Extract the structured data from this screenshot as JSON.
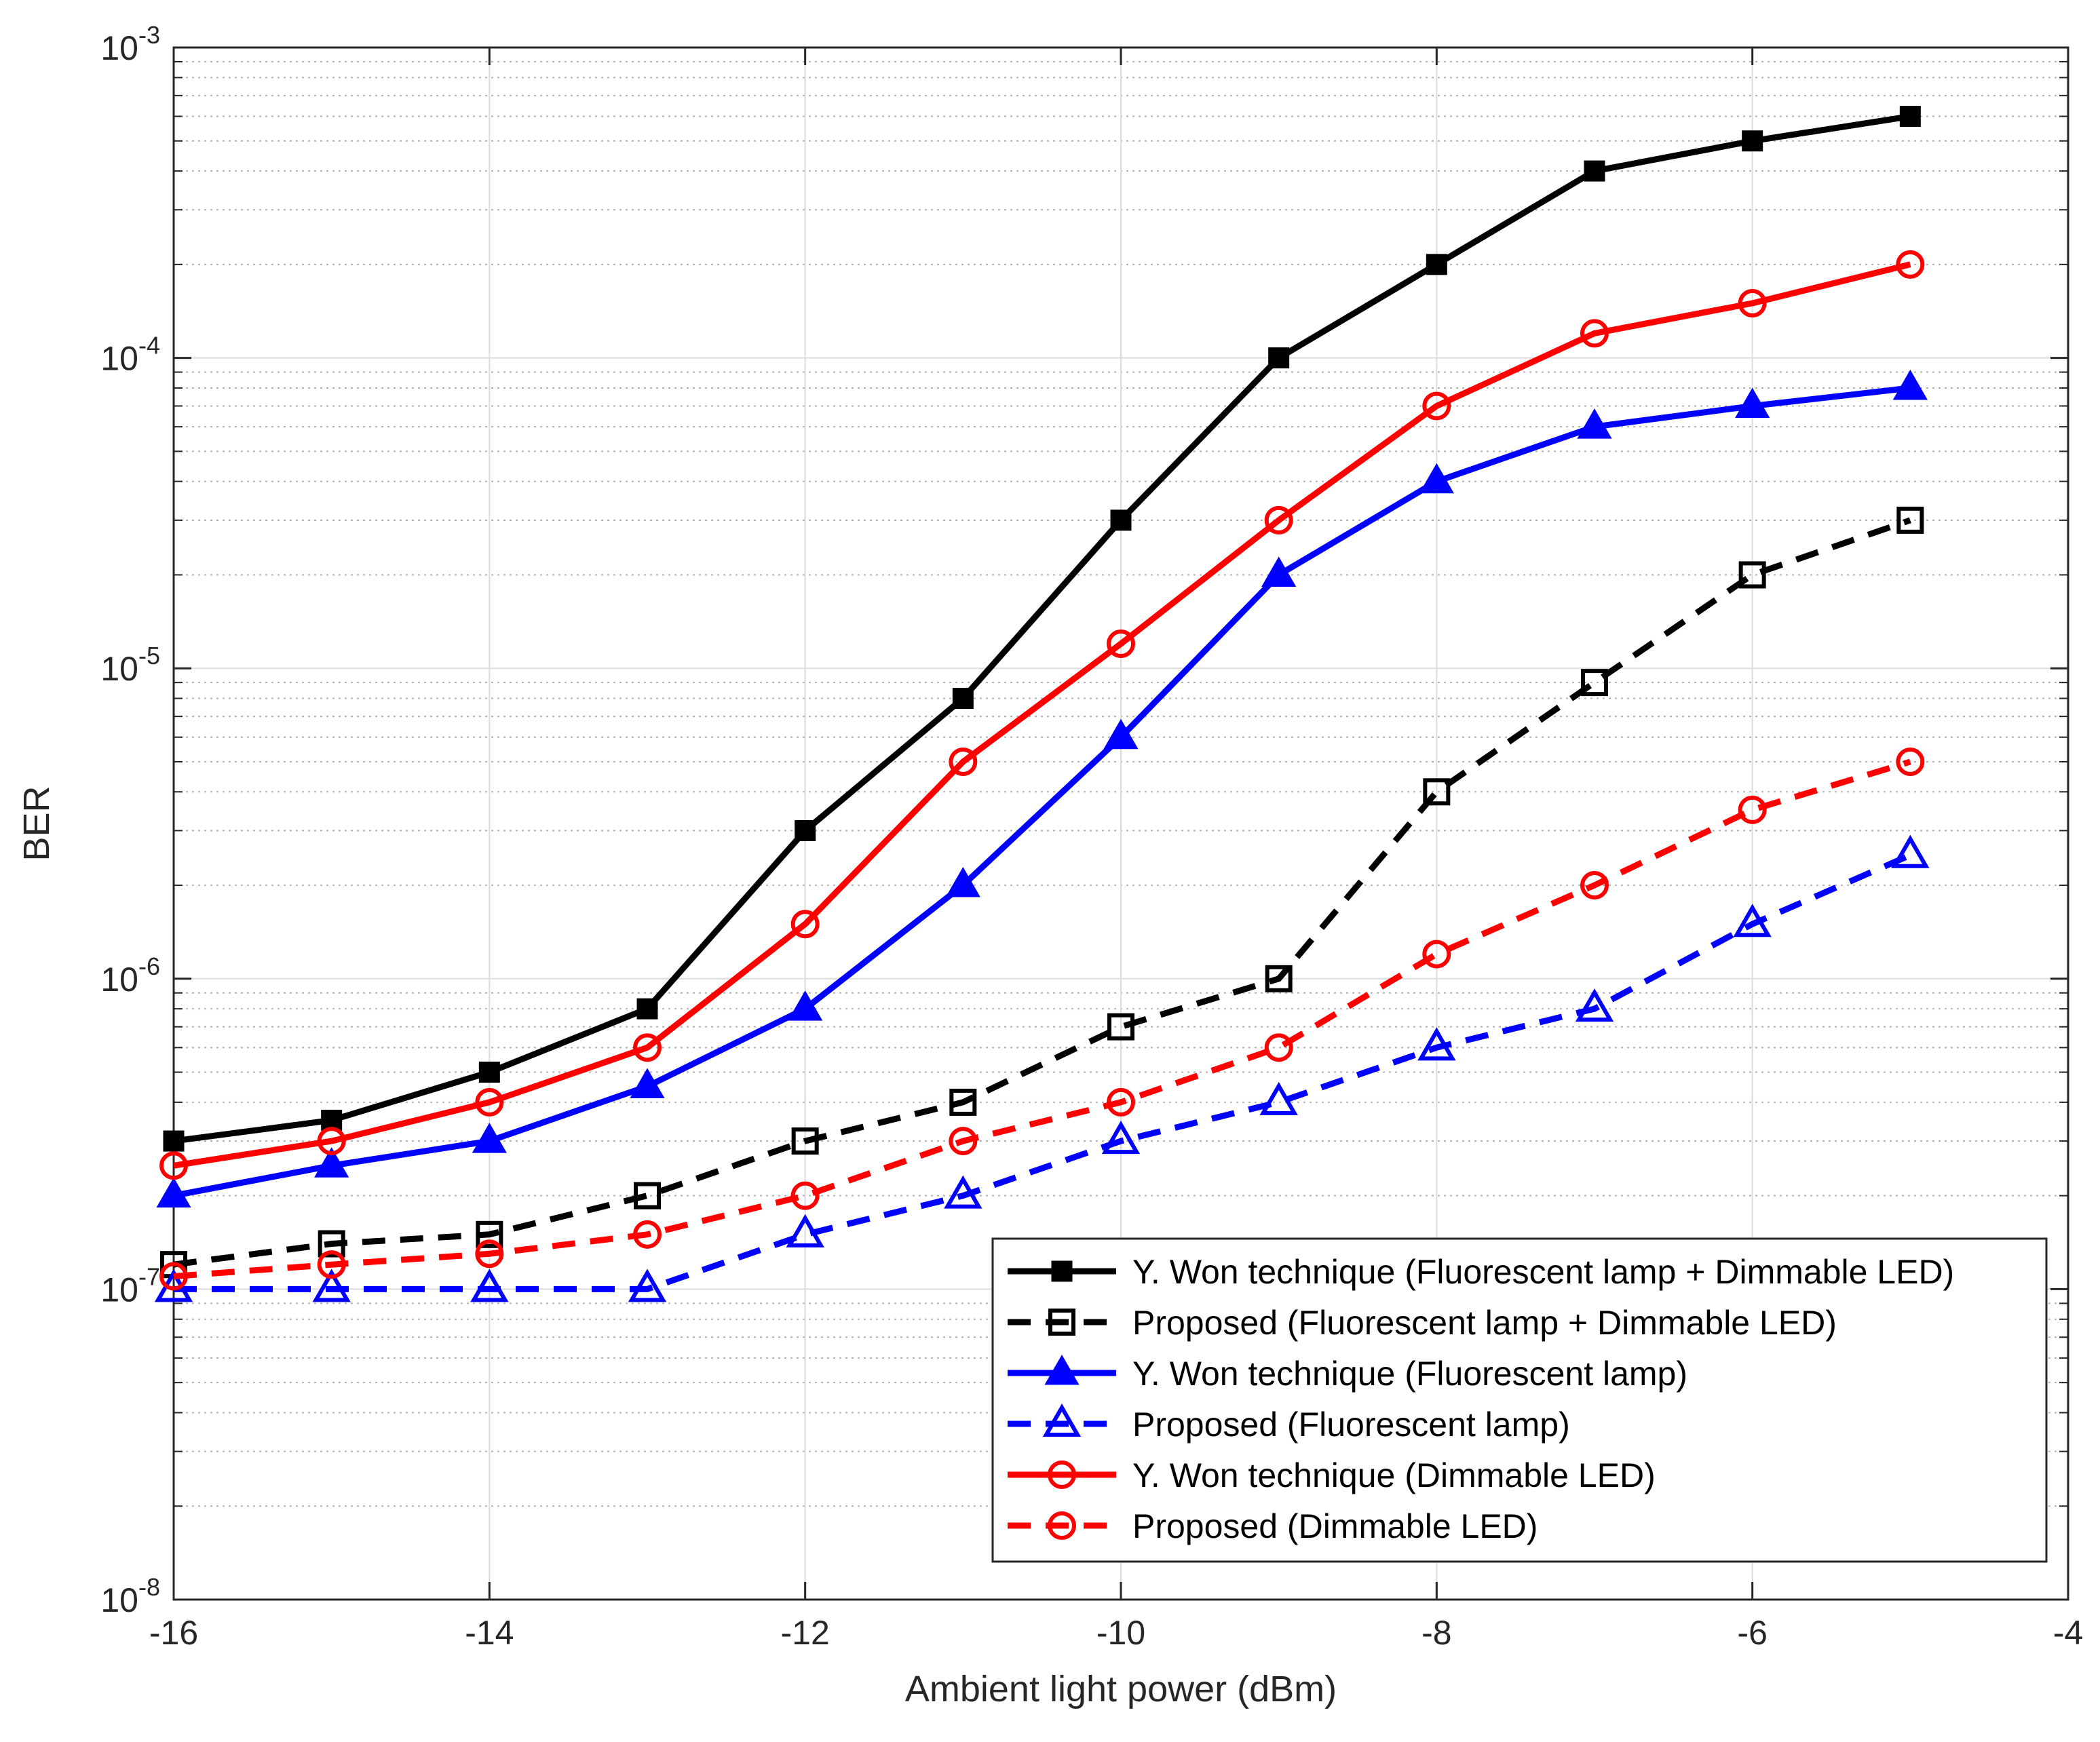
{
  "chart_data": {
    "type": "line",
    "title": "",
    "xlabel": "Ambient light power (dBm)",
    "ylabel": "BER",
    "yscale": "log",
    "xlim": [
      -16,
      -4
    ],
    "ylim": [
      1e-08,
      0.001
    ],
    "grid": true,
    "legend_location": "bottom-right",
    "x": [
      -16,
      -15,
      -14,
      -13,
      -12,
      -11,
      -10,
      -9,
      -8,
      -7,
      -6,
      -5
    ],
    "x_ticks": [
      {
        "value": -16,
        "label": "-16"
      },
      {
        "value": -14,
        "label": "-14"
      },
      {
        "value": -12,
        "label": "-12"
      },
      {
        "value": -10,
        "label": "-10"
      },
      {
        "value": -8,
        "label": "-8"
      },
      {
        "value": -6,
        "label": "-6"
      },
      {
        "value": -4,
        "label": "-4"
      }
    ],
    "y_ticks": [
      {
        "exp": -3,
        "base": "10",
        "sup": "-3"
      },
      {
        "exp": -4,
        "base": "10",
        "sup": "-4"
      },
      {
        "exp": -5,
        "base": "10",
        "sup": "-5"
      },
      {
        "exp": -6,
        "base": "10",
        "sup": "-6"
      },
      {
        "exp": -7,
        "base": "10",
        "sup": "-7"
      },
      {
        "exp": -8,
        "base": "10",
        "sup": "-8"
      }
    ],
    "series": [
      {
        "name": "Y. Won technique (Fluorescent lamp + Dimmable LED)",
        "color": "#000000",
        "dashed": false,
        "marker": "square-filled",
        "values": [
          3e-07,
          3.5e-07,
          5e-07,
          8e-07,
          3e-06,
          8e-06,
          3e-05,
          0.0001,
          0.0002,
          0.0004,
          0.0005,
          0.0006
        ]
      },
      {
        "name": "Proposed (Fluorescent lamp + Dimmable LED)",
        "color": "#000000",
        "dashed": true,
        "marker": "square-open",
        "values": [
          1.2e-07,
          1.4e-07,
          1.5e-07,
          2e-07,
          3e-07,
          4e-07,
          7e-07,
          1e-06,
          4e-06,
          9e-06,
          2e-05,
          3e-05
        ]
      },
      {
        "name": "Y. Won technique (Fluorescent lamp)",
        "color": "#0000ff",
        "dashed": false,
        "marker": "triangle-filled",
        "values": [
          2e-07,
          2.5e-07,
          3e-07,
          4.5e-07,
          8e-07,
          2e-06,
          6e-06,
          2e-05,
          4e-05,
          6e-05,
          7e-05,
          8e-05
        ]
      },
      {
        "name": "Proposed (Fluorescent lamp)",
        "color": "#0000ff",
        "dashed": true,
        "marker": "triangle-open",
        "values": [
          1e-07,
          1e-07,
          1e-07,
          1e-07,
          1.5e-07,
          2e-07,
          3e-07,
          4e-07,
          6e-07,
          8e-07,
          1.5e-06,
          2.5e-06
        ]
      },
      {
        "name": "Y. Won technique (Dimmable LED)",
        "color": "#ff0000",
        "dashed": false,
        "marker": "circle-open",
        "values": [
          2.5e-07,
          3e-07,
          4e-07,
          6e-07,
          1.5e-06,
          5e-06,
          1.2e-05,
          3e-05,
          7e-05,
          0.00012,
          0.00015,
          0.0002
        ]
      },
      {
        "name": "Proposed (Dimmable LED)",
        "color": "#ff0000",
        "dashed": true,
        "marker": "circle-open",
        "values": [
          1.1e-07,
          1.2e-07,
          1.3e-07,
          1.5e-07,
          2e-07,
          3e-07,
          4e-07,
          6e-07,
          1.2e-06,
          2e-06,
          3.5e-06,
          5e-06
        ]
      }
    ]
  }
}
